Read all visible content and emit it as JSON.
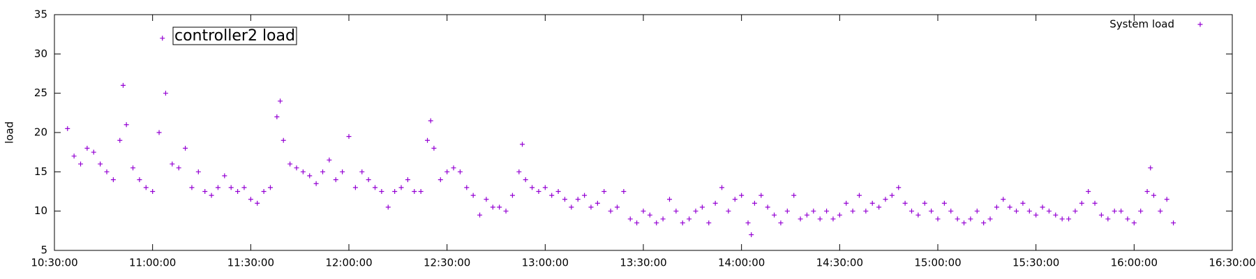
{
  "chart_data": {
    "type": "scatter",
    "ylabel": "load",
    "annotations": [
      "controller2 load"
    ],
    "x": [
      "10:34:00",
      "10:36:00",
      "10:38:00",
      "10:40:00",
      "10:42:00",
      "10:44:00",
      "10:46:00",
      "10:48:00",
      "10:50:00",
      "10:51:00",
      "10:52:00",
      "10:54:00",
      "10:56:00",
      "10:58:00",
      "11:00:00",
      "11:02:00",
      "11:03:00",
      "11:04:00",
      "11:06:00",
      "11:08:00",
      "11:10:00",
      "11:12:00",
      "11:14:00",
      "11:16:00",
      "11:18:00",
      "11:20:00",
      "11:22:00",
      "11:24:00",
      "11:26:00",
      "11:28:00",
      "11:30:00",
      "11:32:00",
      "11:34:00",
      "11:36:00",
      "11:38:00",
      "11:39:00",
      "11:40:00",
      "11:42:00",
      "11:44:00",
      "11:46:00",
      "11:48:00",
      "11:50:00",
      "11:52:00",
      "11:54:00",
      "11:56:00",
      "11:58:00",
      "12:00:00",
      "12:02:00",
      "12:04:00",
      "12:06:00",
      "12:08:00",
      "12:10:00",
      "12:12:00",
      "12:14:00",
      "12:16:00",
      "12:18:00",
      "12:20:00",
      "12:22:00",
      "12:24:00",
      "12:25:00",
      "12:26:00",
      "12:28:00",
      "12:30:00",
      "12:32:00",
      "12:34:00",
      "12:36:00",
      "12:38:00",
      "12:40:00",
      "12:42:00",
      "12:44:00",
      "12:46:00",
      "12:48:00",
      "12:50:00",
      "12:52:00",
      "12:53:00",
      "12:54:00",
      "12:56:00",
      "12:58:00",
      "13:00:00",
      "13:02:00",
      "13:04:00",
      "13:06:00",
      "13:08:00",
      "13:10:00",
      "13:12:00",
      "13:14:00",
      "13:16:00",
      "13:18:00",
      "13:20:00",
      "13:22:00",
      "13:24:00",
      "13:26:00",
      "13:28:00",
      "13:30:00",
      "13:32:00",
      "13:34:00",
      "13:36:00",
      "13:38:00",
      "13:40:00",
      "13:42:00",
      "13:44:00",
      "13:46:00",
      "13:48:00",
      "13:50:00",
      "13:52:00",
      "13:54:00",
      "13:56:00",
      "13:58:00",
      "14:00:00",
      "14:02:00",
      "14:03:00",
      "14:04:00",
      "14:06:00",
      "14:08:00",
      "14:10:00",
      "14:12:00",
      "14:14:00",
      "14:16:00",
      "14:18:00",
      "14:20:00",
      "14:22:00",
      "14:24:00",
      "14:26:00",
      "14:28:00",
      "14:30:00",
      "14:32:00",
      "14:34:00",
      "14:36:00",
      "14:38:00",
      "14:40:00",
      "14:42:00",
      "14:44:00",
      "14:46:00",
      "14:48:00",
      "14:50:00",
      "14:52:00",
      "14:54:00",
      "14:56:00",
      "14:58:00",
      "15:00:00",
      "15:02:00",
      "15:04:00",
      "15:06:00",
      "15:08:00",
      "15:10:00",
      "15:12:00",
      "15:14:00",
      "15:16:00",
      "15:18:00",
      "15:20:00",
      "15:22:00",
      "15:24:00",
      "15:26:00",
      "15:28:00",
      "15:30:00",
      "15:32:00",
      "15:34:00",
      "15:36:00",
      "15:38:00",
      "15:40:00",
      "15:42:00",
      "15:44:00",
      "15:46:00",
      "15:48:00",
      "15:50:00",
      "15:52:00",
      "15:54:00",
      "15:56:00",
      "15:58:00",
      "16:00:00",
      "16:02:00",
      "16:04:00",
      "16:05:00",
      "16:06:00",
      "16:08:00",
      "16:10:00",
      "16:12:00"
    ],
    "series": [
      {
        "name": "System load",
        "color": "#9400d3",
        "values": [
          20.5,
          17,
          16,
          18,
          17.5,
          16,
          15,
          14,
          19,
          26,
          21,
          15.5,
          14,
          13,
          12.5,
          20,
          32,
          25,
          16,
          15.5,
          18,
          13,
          15,
          12.5,
          12,
          13,
          14.5,
          13,
          12.5,
          13,
          11.5,
          11,
          12.5,
          13,
          22,
          24,
          19,
          16,
          15.5,
          15,
          14.5,
          13.5,
          15,
          16.5,
          14,
          15,
          19.5,
          13,
          15,
          14,
          13,
          12.5,
          10.5,
          12.5,
          13,
          14,
          12.5,
          12.5,
          19,
          21.5,
          18,
          14,
          15,
          15.5,
          15,
          13,
          12,
          9.5,
          11.5,
          10.5,
          10.5,
          10,
          12,
          15,
          18.5,
          14,
          13,
          12.5,
          13,
          12,
          12.5,
          11.5,
          10.5,
          11.5,
          12,
          10.5,
          11,
          12.5,
          10,
          10.5,
          12.5,
          9,
          8.5,
          10,
          9.5,
          8.5,
          9,
          11.5,
          10,
          8.5,
          9,
          10,
          10.5,
          8.5,
          11,
          13,
          10,
          11.5,
          12,
          8.5,
          7,
          11,
          12,
          10.5,
          9.5,
          8.5,
          10,
          12,
          9,
          9.5,
          10,
          9,
          10,
          9,
          9.5,
          11,
          10,
          12,
          10,
          11,
          10.5,
          11.5,
          12,
          13,
          11,
          10,
          9.5,
          11,
          10,
          9,
          11,
          10,
          9,
          8.5,
          9,
          10,
          8.5,
          9,
          10.5,
          11.5,
          10.5,
          10,
          11,
          10,
          9.5,
          10.5,
          10,
          9.5,
          9,
          9,
          10,
          11,
          12.5,
          11,
          9.5,
          9,
          10,
          10,
          9,
          8.5,
          10,
          12.5,
          15.5,
          12,
          10,
          11.5,
          8.5
        ]
      }
    ],
    "xlim": [
      "10:30:00",
      "16:30:00"
    ],
    "xticks": [
      "10:30:00",
      "11:00:00",
      "11:30:00",
      "12:00:00",
      "12:30:00",
      "13:00:00",
      "13:30:00",
      "14:00:00",
      "14:30:00",
      "15:00:00",
      "15:30:00",
      "16:00:00",
      "16:30:00"
    ],
    "ylim": [
      5,
      35
    ],
    "yticks": [
      5,
      10,
      15,
      20,
      25,
      30,
      35
    ],
    "legend": "top-right"
  }
}
